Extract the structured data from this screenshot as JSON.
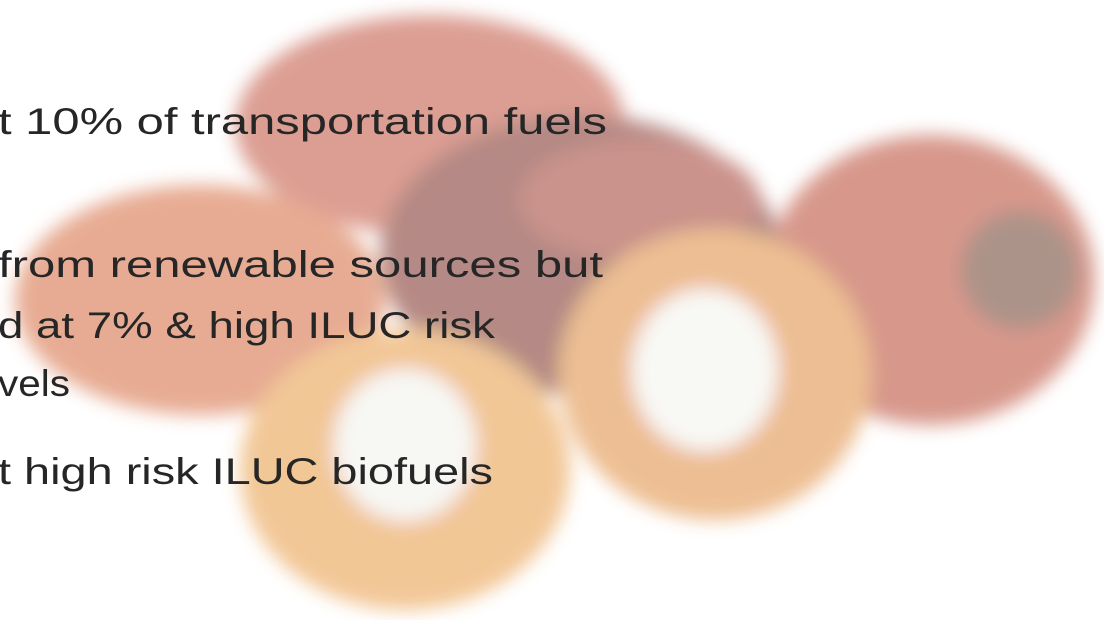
{
  "slide": {
    "lines": [
      "t 10% of transportation fuels",
      "from renewable sources but",
      "d at 7% & high ILUC risk",
      "vels",
      "t high risk ILUC biofuels"
    ]
  }
}
